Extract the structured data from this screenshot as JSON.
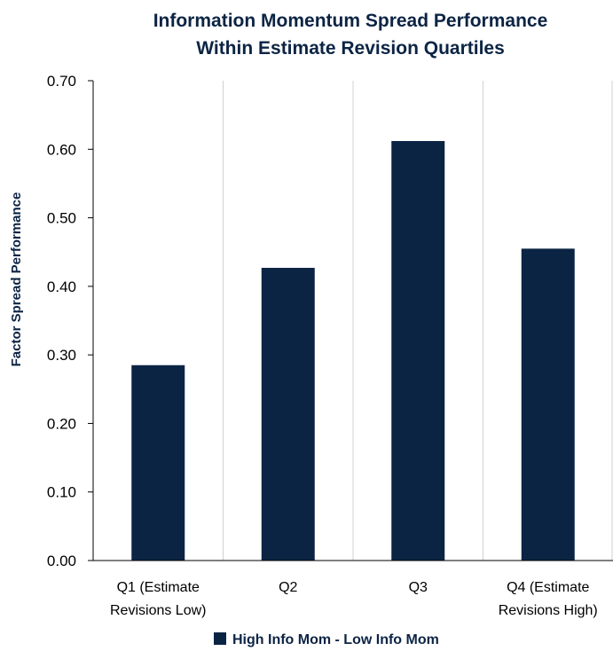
{
  "colors": {
    "bar": "#0c2444",
    "title": "#0c2444",
    "grid": "#d0d0d0",
    "axis": "#000000"
  },
  "chart_data": {
    "type": "bar",
    "title": [
      "Information Momentum Spread Performance",
      "Within Estimate Revision Quartiles"
    ],
    "xlabel": "",
    "ylabel": "Factor Spread Performance",
    "ylim": [
      0,
      0.7
    ],
    "yticks": [
      "0.00",
      "0.10",
      "0.20",
      "0.30",
      "0.40",
      "0.50",
      "0.60",
      "0.70"
    ],
    "categories": [
      [
        "Q1 (Estimate",
        "Revisions Low)"
      ],
      [
        "Q2"
      ],
      [
        "Q3"
      ],
      [
        "Q4 (Estimate",
        "Revisions High)"
      ]
    ],
    "series": [
      {
        "name": "High Info Mom - Low Info Mom",
        "values": [
          0.285,
          0.427,
          0.612,
          0.455
        ]
      }
    ],
    "grid": "vertical category dividers",
    "legend": "bottom-center"
  }
}
